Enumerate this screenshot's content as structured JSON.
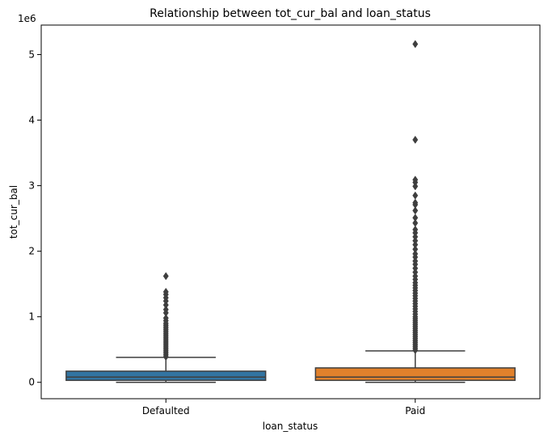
{
  "chart_data": {
    "type": "box",
    "title": "Relationship between tot_cur_bal and loan_status",
    "xlabel": "loan_status",
    "ylabel": "tot_cur_bal",
    "y_offset_label": "1e6",
    "y_scale_factor": 1000000,
    "ylim": [
      -250000,
      5450000
    ],
    "yticks": [
      0,
      1000000,
      2000000,
      3000000,
      4000000,
      5000000
    ],
    "ytick_labels": [
      "0",
      "1",
      "2",
      "3",
      "4",
      "5"
    ],
    "grid": false,
    "legend": "none",
    "categories": [
      "Defaulted",
      "Paid"
    ],
    "boxes": [
      {
        "category": "Defaulted",
        "color": "#3274a1",
        "whisker_low": 0,
        "q1": 30000,
        "median": 80000,
        "q3": 170000,
        "whisker_high": 380000,
        "outliers": [
          390000,
          420000,
          450000,
          480000,
          510000,
          540000,
          570000,
          600000,
          630000,
          660000,
          690000,
          720000,
          750000,
          780000,
          810000,
          840000,
          870000,
          900000,
          940000,
          980000,
          1060000,
          1110000,
          1180000,
          1240000,
          1290000,
          1340000,
          1380000,
          1620000
        ]
      },
      {
        "category": "Paid",
        "color": "#e1812c",
        "whisker_low": 0,
        "q1": 30000,
        "median": 80000,
        "q3": 220000,
        "whisker_high": 480000,
        "outliers": [
          490000,
          520000,
          550000,
          580000,
          610000,
          640000,
          670000,
          700000,
          730000,
          760000,
          790000,
          820000,
          850000,
          880000,
          910000,
          940000,
          970000,
          1000000,
          1040000,
          1080000,
          1120000,
          1160000,
          1200000,
          1240000,
          1280000,
          1320000,
          1360000,
          1400000,
          1440000,
          1480000,
          1520000,
          1570000,
          1620000,
          1680000,
          1740000,
          1800000,
          1850000,
          1910000,
          1960000,
          2030000,
          2100000,
          2160000,
          2220000,
          2280000,
          2330000,
          2430000,
          2510000,
          2620000,
          2710000,
          2740000,
          2850000,
          2990000,
          3050000,
          3090000,
          3700000,
          5160000
        ]
      }
    ]
  }
}
